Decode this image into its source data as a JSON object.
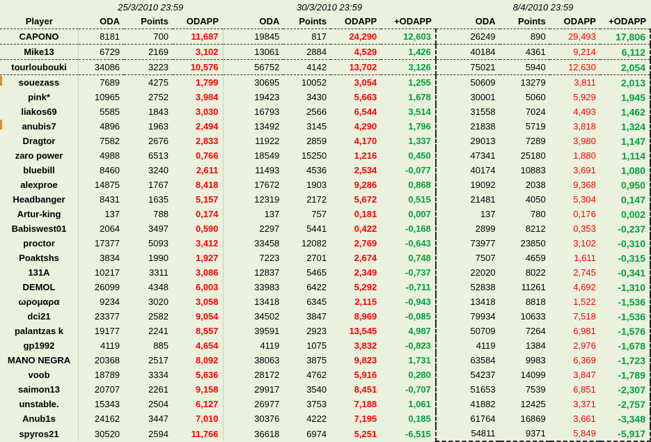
{
  "header": {
    "player_label": "Player",
    "dates": [
      "25/3/2010 23:59",
      "30/3/2010 23:59",
      "8/4/2010 23:59"
    ],
    "group1_cols": [
      "ODA",
      "Points",
      "ODAPP"
    ],
    "group2_cols": [
      "ODA",
      "Points",
      "ODAPP",
      "+ODAPP"
    ],
    "group3_cols": [
      "ODA",
      "Points",
      "ODAPP",
      "+ODAPP"
    ]
  },
  "rows": [
    [
      "CAPONO",
      "8181",
      "700",
      "11,687",
      "19845",
      "817",
      "24,290",
      "12,603",
      "26249",
      "890",
      "29,493",
      "17,806"
    ],
    [
      "Mike13",
      "6729",
      "2169",
      "3,102",
      "13061",
      "2884",
      "4,529",
      "1,426",
      "40184",
      "4361",
      "9,214",
      "6,112"
    ],
    [
      "tourloubouki",
      "34086",
      "3223",
      "10,576",
      "56752",
      "4142",
      "13,702",
      "3,126",
      "75021",
      "5940",
      "12,630",
      "2,054"
    ],
    [
      "souezass",
      "7689",
      "4275",
      "1,799",
      "30695",
      "10052",
      "3,054",
      "1,255",
      "50609",
      "13279",
      "3,811",
      "2,013"
    ],
    [
      "pink*",
      "10965",
      "2752",
      "3,984",
      "19423",
      "3430",
      "5,663",
      "1,678",
      "30001",
      "5060",
      "5,929",
      "1,945"
    ],
    [
      "liakos69",
      "5585",
      "1843",
      "3,030",
      "16793",
      "2566",
      "6,544",
      "3,514",
      "31558",
      "7024",
      "4,493",
      "1,462"
    ],
    [
      "anubis7",
      "4896",
      "1963",
      "2,494",
      "13492",
      "3145",
      "4,290",
      "1,796",
      "21838",
      "5719",
      "3,818",
      "1,324"
    ],
    [
      "Dragtor",
      "7582",
      "2676",
      "2,833",
      "11922",
      "2859",
      "4,170",
      "1,337",
      "29013",
      "7289",
      "3,980",
      "1,147"
    ],
    [
      "zaro power",
      "4988",
      "6513",
      "0,766",
      "18549",
      "15250",
      "1,216",
      "0,450",
      "47341",
      "25180",
      "1,880",
      "1,114"
    ],
    [
      "bluebill",
      "8460",
      "3240",
      "2,611",
      "11493",
      "4536",
      "2,534",
      "-0,077",
      "40174",
      "10883",
      "3,691",
      "1,080"
    ],
    [
      "alexproe",
      "14875",
      "1767",
      "8,418",
      "17672",
      "1903",
      "9,286",
      "0,868",
      "19092",
      "2038",
      "9,368",
      "0,950"
    ],
    [
      "Headbanger",
      "8431",
      "1635",
      "5,157",
      "12319",
      "2172",
      "5,672",
      "0,515",
      "21481",
      "4050",
      "5,304",
      "0,147"
    ],
    [
      "Artur-king",
      "137",
      "788",
      "0,174",
      "137",
      "757",
      "0,181",
      "0,007",
      "137",
      "780",
      "0,176",
      "0,002"
    ],
    [
      "Babiswest01",
      "2064",
      "3497",
      "0,590",
      "2297",
      "5441",
      "0,422",
      "-0,168",
      "2899",
      "8212",
      "0,353",
      "-0,237"
    ],
    [
      "proctor",
      "17377",
      "5093",
      "3,412",
      "33458",
      "12082",
      "2,769",
      "-0,643",
      "73977",
      "23850",
      "3,102",
      "-0,310"
    ],
    [
      "Poaktshs",
      "3834",
      "1990",
      "1,927",
      "7223",
      "2701",
      "2,674",
      "0,748",
      "7507",
      "4659",
      "1,611",
      "-0,315"
    ],
    [
      "131A",
      "10217",
      "3311",
      "3,086",
      "12837",
      "5465",
      "2,349",
      "-0,737",
      "22020",
      "8022",
      "2,745",
      "-0,341"
    ],
    [
      "DEMOL",
      "26099",
      "4348",
      "6,003",
      "33983",
      "6422",
      "5,292",
      "-0,711",
      "52838",
      "11261",
      "4,692",
      "-1,310"
    ],
    [
      "ωρομαρα",
      "9234",
      "3020",
      "3,058",
      "13418",
      "6345",
      "2,115",
      "-0,943",
      "13418",
      "8818",
      "1,522",
      "-1,536"
    ],
    [
      "dci21",
      "23377",
      "2582",
      "9,054",
      "34502",
      "3847",
      "8,969",
      "-0,085",
      "79934",
      "10633",
      "7,518",
      "-1,536"
    ],
    [
      "palantzas k",
      "19177",
      "2241",
      "8,557",
      "39591",
      "2923",
      "13,545",
      "4,987",
      "50709",
      "7264",
      "6,981",
      "-1,576"
    ],
    [
      "gp1992",
      "4119",
      "885",
      "4,654",
      "4119",
      "1075",
      "3,832",
      "-0,823",
      "4119",
      "1384",
      "2,976",
      "-1,678"
    ],
    [
      "MANO NEGRA",
      "20368",
      "2517",
      "8,092",
      "38063",
      "3875",
      "9,823",
      "1,731",
      "63584",
      "9983",
      "6,369",
      "-1,723"
    ],
    [
      "voob",
      "18789",
      "3334",
      "5,636",
      "28172",
      "4762",
      "5,916",
      "0,280",
      "54237",
      "14099",
      "3,847",
      "-1,789"
    ],
    [
      "saimon13",
      "20707",
      "2261",
      "9,158",
      "29917",
      "3540",
      "8,451",
      "-0,707",
      "51653",
      "7539",
      "6,851",
      "-2,307"
    ],
    [
      "unstable.",
      "15343",
      "2504",
      "6,127",
      "26977",
      "3753",
      "7,188",
      "1,061",
      "41882",
      "12425",
      "3,371",
      "-2,757"
    ],
    [
      "Anub1s",
      "24162",
      "3447",
      "7,010",
      "30376",
      "4222",
      "7,195",
      "0,185",
      "61764",
      "16869",
      "3,661",
      "-3,348"
    ],
    [
      "spyros21",
      "30520",
      "2594",
      "11,766",
      "36618",
      "6974",
      "5,251",
      "-6,515",
      "54811",
      "9371",
      "5,849",
      "-5,917"
    ]
  ],
  "colors": {
    "background": "#eaf1dd",
    "odapp": "#ff0000",
    "plus": "#00a040"
  }
}
